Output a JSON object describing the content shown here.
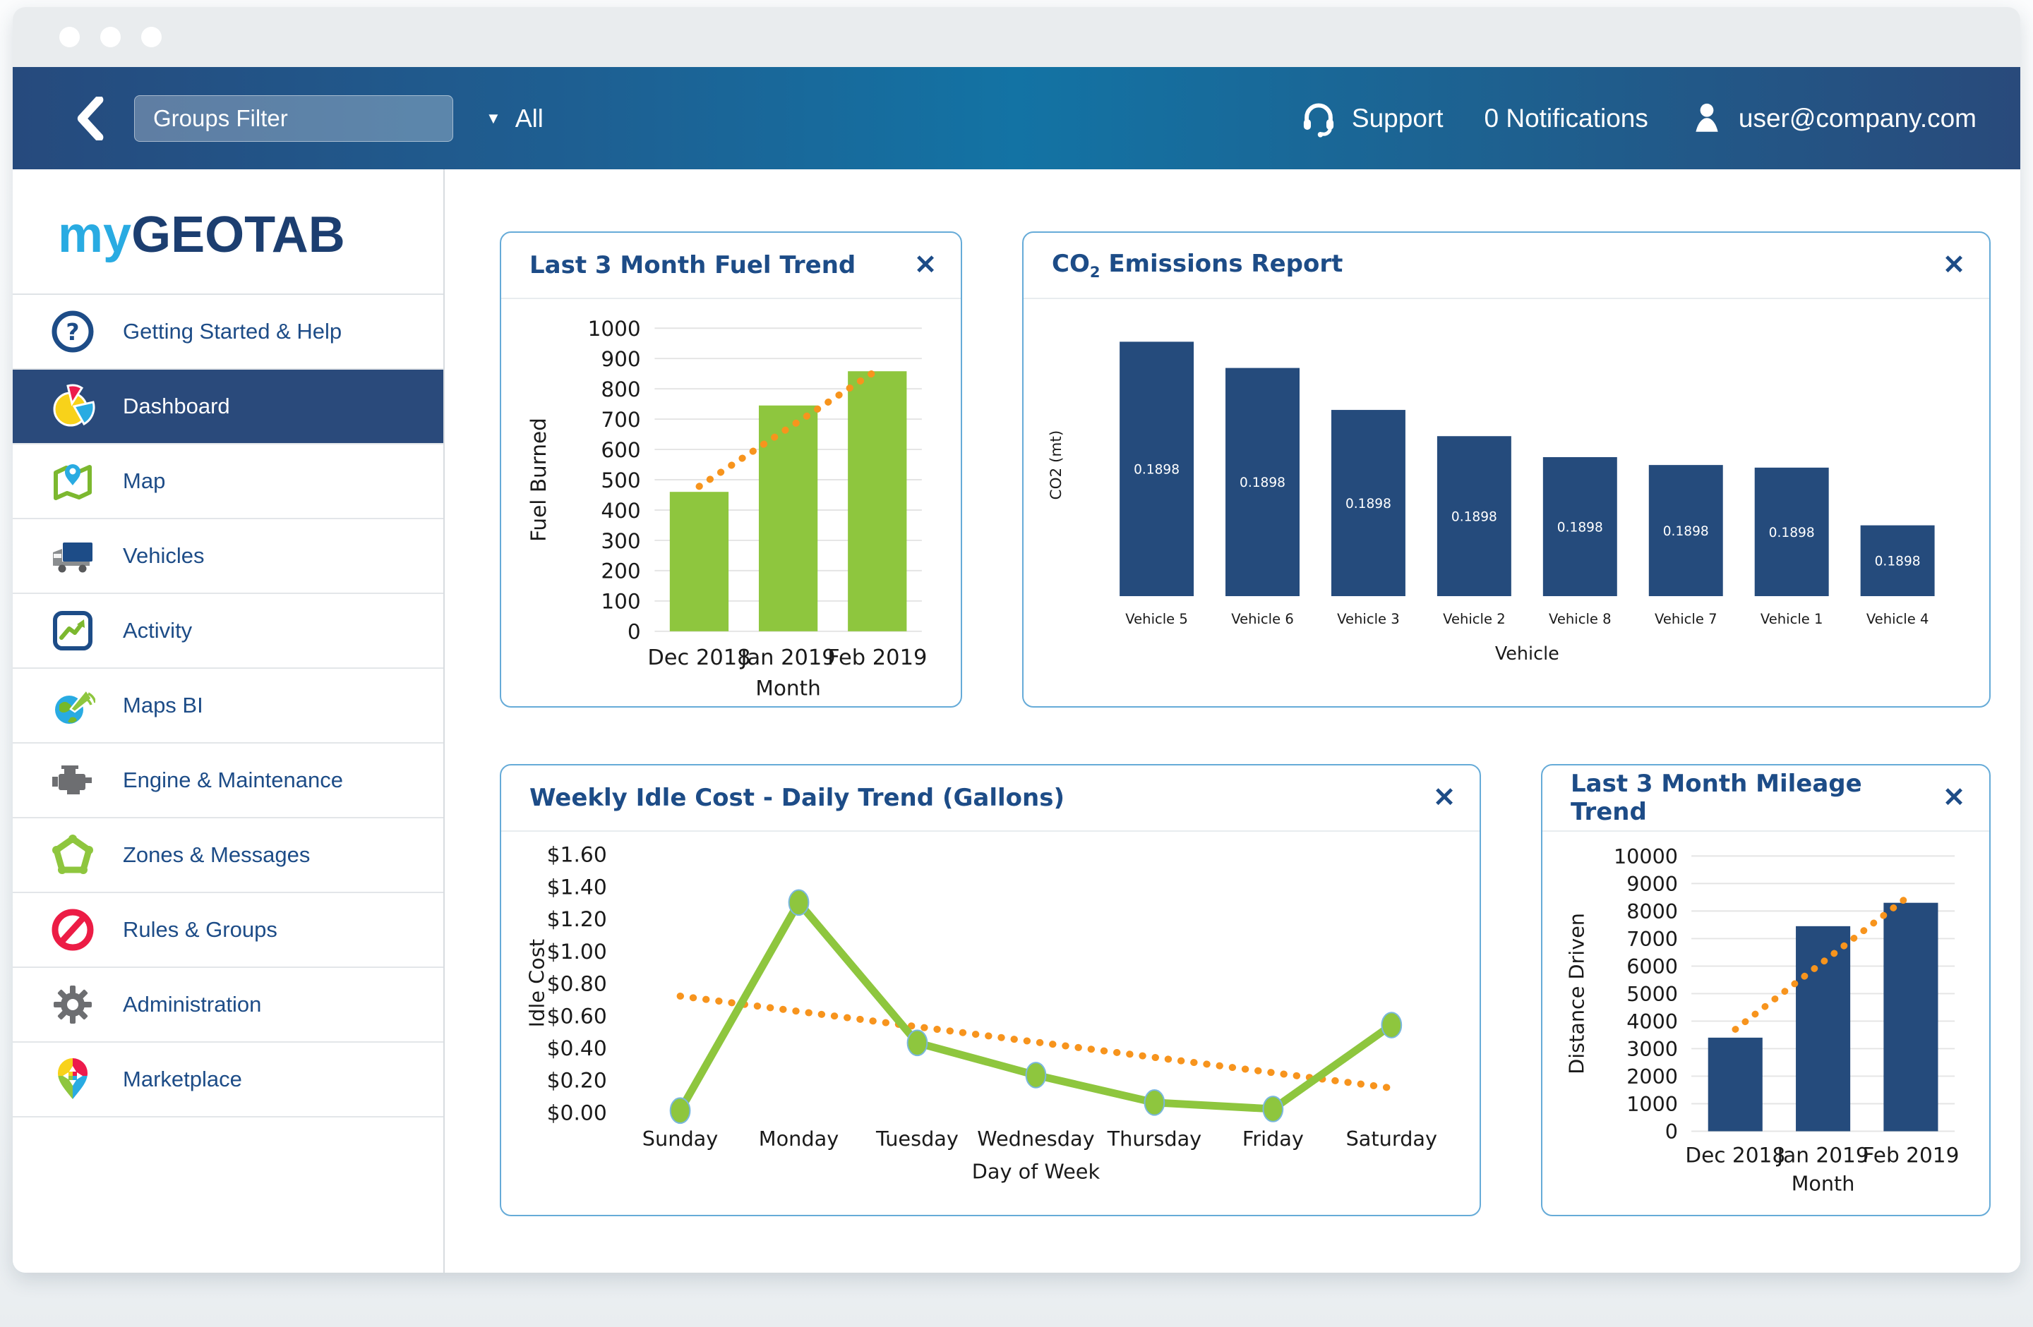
{
  "topbar": {
    "groups_filter_value": "Groups Filter",
    "dropdown_caret": "▼",
    "dropdown_value": "All",
    "support_label": "Support",
    "notifications_label": "0 Notifications",
    "user_email": "user@company.com"
  },
  "sidebar": {
    "logo": {
      "prefix": "my",
      "suffix": "GEOTAB"
    },
    "items": [
      {
        "label": "Getting Started & Help",
        "icon": "help-icon",
        "active": false
      },
      {
        "label": "Dashboard",
        "icon": "dashboard-pie-icon",
        "active": true
      },
      {
        "label": "Map",
        "icon": "map-pin-icon",
        "active": false
      },
      {
        "label": "Vehicles",
        "icon": "truck-icon",
        "active": false
      },
      {
        "label": "Activity",
        "icon": "activity-chart-icon",
        "active": false
      },
      {
        "label": "Maps BI",
        "icon": "maps-bi-globe-icon",
        "active": false
      },
      {
        "label": "Engine & Maintenance",
        "icon": "engine-icon",
        "active": false
      },
      {
        "label": "Zones & Messages",
        "icon": "zones-gear-icon",
        "active": false
      },
      {
        "label": "Rules & Groups",
        "icon": "prohibition-icon",
        "active": false
      },
      {
        "label": "Administration",
        "icon": "gear-icon",
        "active": false
      },
      {
        "label": "Marketplace",
        "icon": "marketplace-pin-icon",
        "active": false
      }
    ]
  },
  "ui": {
    "close_glyph": "✕"
  },
  "colors": {
    "topbar_gradient_left": "#264a7d",
    "topbar_gradient_mid": "#1373a4",
    "topbar_gradient_right": "#294a7b",
    "navy_text": "#1d4c87",
    "active_item_bg": "#2a4a7b",
    "card_border": "#66abd8",
    "green": "#8ec63e",
    "orange": "#f7941d",
    "bar_navy": "#254b7c",
    "logo_my": "#29abe2",
    "logo_geotab": "#1c3e70"
  },
  "chart_data": [
    {
      "type": "bar",
      "title": "Last 3 Month Fuel Trend",
      "categories": [
        "Dec 2018",
        "Jan 2019",
        "Feb 2019"
      ],
      "values": [
        460,
        745,
        858
      ],
      "trendline": [
        478,
        670,
        862
      ],
      "xlabel": "Month",
      "ylabel": "Fuel Burned",
      "ylim": [
        0,
        1000
      ],
      "ytick_step": 100,
      "ytick_decimals": 0,
      "bar_color": "#8ec63e",
      "trend_color": "#f7941d",
      "grid": true,
      "legend": "none"
    },
    {
      "type": "bar",
      "title": "CO2 Emissions Report",
      "title_parts": [
        "CO",
        "2",
        " Emissions Report"
      ],
      "categories": [
        "Vehicle 5",
        "Vehicle 6",
        "Vehicle 3",
        "Vehicle 2",
        "Vehicle 8",
        "Vehicle 7",
        "Vehicle 1",
        "Vehicle 4"
      ],
      "values": [
        0.97,
        0.87,
        0.71,
        0.61,
        0.53,
        0.5,
        0.49,
        0.27
      ],
      "values_note": "relative bar heights; y-axis shows no numeric scale",
      "bar_labels": [
        "0.1898",
        "0.1898",
        "0.1898",
        "0.1898",
        "0.1898",
        "0.1898",
        "0.1898",
        "0.1898"
      ],
      "xlabel": "Vehicle",
      "ylabel": "CO2 (mt)",
      "ylim": [
        0,
        1
      ],
      "bar_color": "#254b7c",
      "grid": false
    },
    {
      "type": "line",
      "title": "Weekly Idle Cost - Daily Trend (Gallons)",
      "categories": [
        "Sunday",
        "Monday",
        "Tuesday",
        "Wednesday",
        "Thursday",
        "Friday",
        "Saturday"
      ],
      "values": [
        0.01,
        1.3,
        0.43,
        0.23,
        0.06,
        0.02,
        0.54
      ],
      "trendline": [
        0.72,
        0.625,
        0.53,
        0.435,
        0.34,
        0.245,
        0.15
      ],
      "xlabel": "Day of Week",
      "ylabel": "Idle Cost",
      "ylim": [
        0,
        1.6
      ],
      "ytick_step": 0.2,
      "ytick_prefix": "$",
      "ytick_decimals": 2,
      "line_color": "#8ec63e",
      "trend_color": "#f7941d",
      "grid": false
    },
    {
      "type": "bar",
      "title": "Last 3 Month Mileage Trend",
      "categories": [
        "Dec 2018",
        "Jan 2019",
        "Feb 2019"
      ],
      "values": [
        3400,
        7450,
        8300
      ],
      "trendline": [
        3700,
        6150,
        8600
      ],
      "xlabel": "Month",
      "ylabel": "Distance Driven",
      "ylim": [
        0,
        10000
      ],
      "ytick_step": 1000,
      "ytick_decimals": 0,
      "bar_color": "#254b7c",
      "trend_color": "#f7941d",
      "grid": true
    }
  ]
}
